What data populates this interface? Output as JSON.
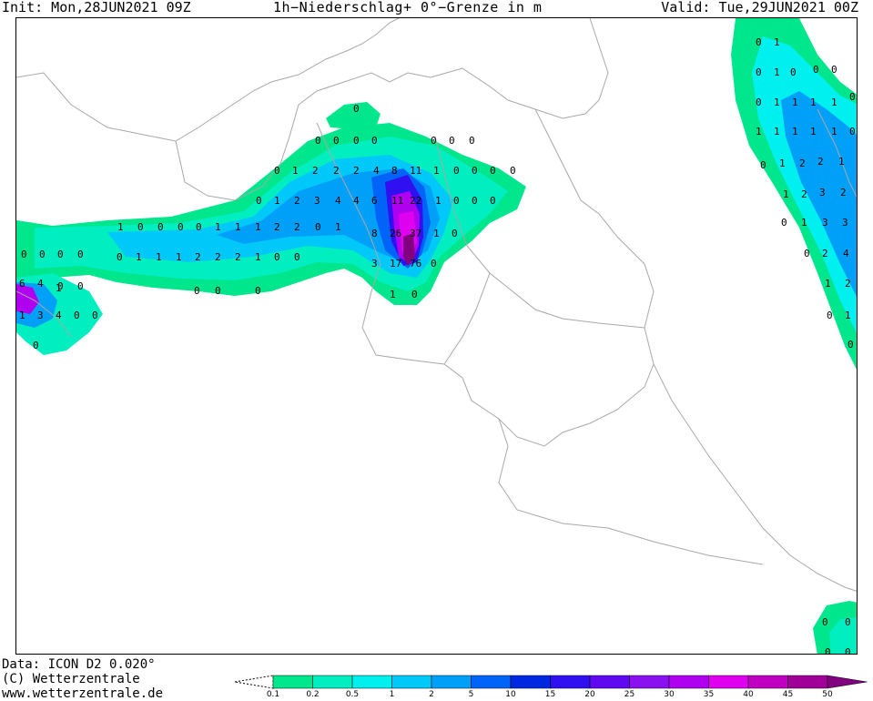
{
  "header": {
    "init": "Init: Mon,28JUN2021 09Z",
    "title": "1h−Niederschlag+ 0°−Grenze in m",
    "valid": "Valid: Tue,29JUN2021 00Z"
  },
  "footer": {
    "data": "Data: ICON D2 0.020°",
    "copyright": "(C) Wetterzentrale",
    "url": "www.wetterzentrale.de"
  },
  "legend": {
    "thresholds": [
      "0.1",
      "0.2",
      "0.5",
      "1",
      "2",
      "5",
      "10",
      "15",
      "20",
      "25",
      "30",
      "35",
      "40",
      "45",
      "50"
    ],
    "colors": [
      "#00e68c",
      "#00eec0",
      "#00f0f0",
      "#00c8f8",
      "#00a0f8",
      "#0064f8",
      "#0028e0",
      "#3010f0",
      "#6008f0",
      "#8a10f0",
      "#b000f0",
      "#e000f0",
      "#c000c0",
      "#a00098",
      "#800080"
    ]
  },
  "map": {
    "values": [
      "0",
      "0",
      "0",
      "0",
      "0",
      "0",
      "0",
      "0",
      "0",
      "1",
      "2",
      "2",
      "2",
      "4",
      "8",
      "11",
      "1",
      "0",
      "0",
      "0",
      "0",
      "0",
      "1",
      "2",
      "3",
      "4",
      "4",
      "6",
      "11",
      "22",
      "1",
      "0",
      "0",
      "0",
      "1",
      "0",
      "0",
      "0",
      "0",
      "1",
      "1",
      "1",
      "2",
      "2",
      "0",
      "1",
      "8",
      "26",
      "37",
      "1",
      "0",
      "0",
      "1",
      "1",
      "1",
      "2",
      "2",
      "2",
      "1",
      "0",
      "0",
      "3",
      "17",
      "76",
      "0",
      "0",
      "0",
      "0",
      "1",
      "0",
      "0",
      "1",
      "0",
      "1",
      "0",
      "0",
      "0",
      "0",
      "1",
      "1",
      "1",
      "1",
      "0",
      "1",
      "1",
      "1",
      "1",
      "1",
      "1",
      "0",
      "0",
      "1",
      "2",
      "2",
      "1",
      "1",
      "2",
      "3",
      "2",
      "0",
      "1",
      "3",
      "3",
      "0",
      "2",
      "4",
      "1",
      "2",
      "0",
      "1",
      "0",
      "0",
      "0",
      "0",
      "0",
      "0",
      "0",
      "0",
      "0",
      "0",
      "0",
      "6",
      "4",
      "1",
      "3",
      "1",
      "4",
      "0",
      "0",
      "0"
    ]
  }
}
